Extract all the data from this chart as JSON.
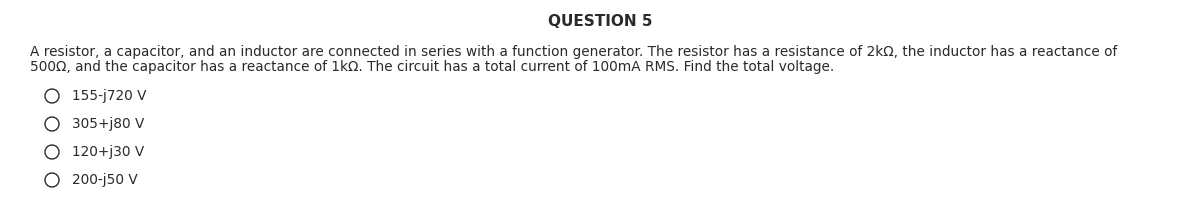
{
  "title": "QUESTION 5",
  "body_line1": "A resistor, a capacitor, and an inductor are connected in series with a function generator. The resistor has a resistance of 2kΩ, the inductor has a reactance of",
  "body_line2": "500Ω, and the capacitor has a reactance of 1kΩ. The circuit has a total current of 100mA RMS. Find the total voltage.",
  "options": [
    "155-j720 V",
    "305+j80 V",
    "120+j30 V",
    "200-j50 V"
  ],
  "background_color": "#ffffff",
  "text_color": "#2a2a2a",
  "title_fontsize": 11,
  "body_fontsize": 9.8,
  "option_fontsize": 9.8
}
